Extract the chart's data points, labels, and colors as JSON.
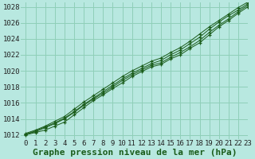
{
  "bg_color": "#b8e8e0",
  "grid_color": "#8fcfb8",
  "line_color": "#1a5c1a",
  "xlabel": "Graphe pression niveau de la mer (hPa)",
  "xlim": [
    -0.5,
    23
  ],
  "ylim": [
    1011.5,
    1028.5
  ],
  "xticks": [
    0,
    1,
    2,
    3,
    4,
    5,
    6,
    7,
    8,
    9,
    10,
    11,
    12,
    13,
    14,
    15,
    16,
    17,
    18,
    19,
    20,
    21,
    22,
    23
  ],
  "yticks": [
    1012,
    1014,
    1016,
    1018,
    1020,
    1022,
    1024,
    1026,
    1028
  ],
  "series": [
    [
      1012.0,
      1012.3,
      1012.6,
      1013.1,
      1013.6,
      1014.5,
      1015.4,
      1016.3,
      1017.0,
      1017.8,
      1018.5,
      1019.3,
      1019.9,
      1020.5,
      1020.8,
      1021.5,
      1022.0,
      1022.8,
      1023.5,
      1024.5,
      1025.5,
      1026.3,
      1027.2,
      1028.0
    ],
    [
      1012.1,
      1012.4,
      1012.9,
      1013.4,
      1014.0,
      1014.8,
      1015.7,
      1016.5,
      1017.2,
      1018.0,
      1018.8,
      1019.5,
      1020.1,
      1020.7,
      1021.0,
      1021.7,
      1022.3,
      1023.0,
      1023.8,
      1024.8,
      1025.7,
      1026.5,
      1027.4,
      1028.2
    ],
    [
      1012.1,
      1012.5,
      1013.0,
      1013.5,
      1014.1,
      1014.9,
      1015.8,
      1016.6,
      1017.4,
      1018.2,
      1019.0,
      1019.7,
      1020.3,
      1020.9,
      1021.3,
      1022.0,
      1022.6,
      1023.4,
      1024.2,
      1025.2,
      1026.1,
      1026.9,
      1027.6,
      1028.4
    ],
    [
      1012.2,
      1012.6,
      1013.1,
      1013.7,
      1014.3,
      1015.2,
      1016.1,
      1016.9,
      1017.7,
      1018.5,
      1019.3,
      1020.0,
      1020.6,
      1021.2,
      1021.6,
      1022.3,
      1022.9,
      1023.7,
      1024.6,
      1025.5,
      1026.3,
      1027.1,
      1027.9,
      1028.6
    ]
  ],
  "title_fontsize": 8,
  "tick_fontsize": 6.5
}
